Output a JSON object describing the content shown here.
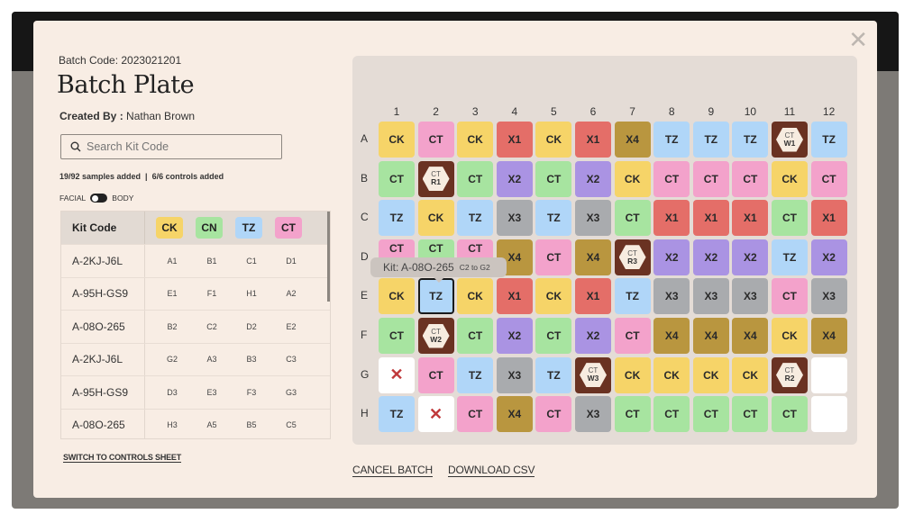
{
  "header": {
    "batch_code": "Batch Code: 2023021201",
    "title": "Batch Plate",
    "created_label": "Created By :",
    "created_value": "Nathan Brown",
    "close_icon": "close-icon"
  },
  "search": {
    "placeholder": "Search Kit Code"
  },
  "counts": "19/92 samples added  |  6/6 controls added",
  "toggle": {
    "left": "FACIAL",
    "right": "BODY",
    "state": "facial"
  },
  "table": {
    "header": "Kit Code",
    "chips": [
      {
        "label": "CK",
        "color": "yellow"
      },
      {
        "label": "CN",
        "color": "green"
      },
      {
        "label": "TZ",
        "color": "blue"
      },
      {
        "label": "CT",
        "color": "pink"
      }
    ],
    "rows": [
      {
        "kit": "A-2KJ-J6L",
        "wells": [
          "A1",
          "B1",
          "C1",
          "D1"
        ]
      },
      {
        "kit": "A-95H-GS9",
        "wells": [
          "E1",
          "F1",
          "H1",
          "A2"
        ]
      },
      {
        "kit": "A-08O-265",
        "wells": [
          "B2",
          "C2",
          "D2",
          "E2"
        ]
      },
      {
        "kit": "A-2KJ-J6L",
        "wells": [
          "G2",
          "A3",
          "B3",
          "C3"
        ]
      },
      {
        "kit": "A-95H-GS9",
        "wells": [
          "D3",
          "E3",
          "F3",
          "G3"
        ]
      },
      {
        "kit": "A-08O-265",
        "wells": [
          "H3",
          "A5",
          "B5",
          "C5"
        ]
      }
    ]
  },
  "links": {
    "switch": "SWITCH TO CONTROLS SHEET",
    "cancel": "CANCEL BATCH",
    "download": "DOWNLOAD CSV"
  },
  "colors": {
    "yellow": "#f6d468",
    "pink": "#f3a2cb",
    "green": "#a7e4a0",
    "blue": "#b0d6f8",
    "x1": "#e46e68",
    "x2": "#aa93e3",
    "x3": "#a9abae",
    "x4": "#b9963f",
    "ctrl": "#6a3222",
    "empty": "#ffffff"
  },
  "plate": {
    "columns": [
      "1",
      "2",
      "3",
      "4",
      "5",
      "6",
      "7",
      "8",
      "9",
      "10",
      "11",
      "12"
    ],
    "rows": [
      "A",
      "B",
      "C",
      "D",
      "E",
      "F",
      "G",
      "H"
    ],
    "tooltip": {
      "kit": "Kit: A-08O-265",
      "range": "C2 to G2",
      "row": 4,
      "col": 1
    },
    "selected": {
      "row": 4,
      "col": 1
    },
    "cells": [
      [
        [
          "CK",
          "yellow"
        ],
        [
          "CT",
          "pink"
        ],
        [
          "CK",
          "yellow"
        ],
        [
          "X1",
          "x1"
        ],
        [
          "CK",
          "yellow"
        ],
        [
          "X1",
          "x1"
        ],
        [
          "X4",
          "x4"
        ],
        [
          "TZ",
          "blue"
        ],
        [
          "TZ",
          "blue"
        ],
        [
          "TZ",
          "blue"
        ],
        [
          "CT W1",
          "ctrl"
        ],
        [
          "TZ",
          "blue"
        ]
      ],
      [
        [
          "CT",
          "green"
        ],
        [
          "CT R1",
          "ctrl"
        ],
        [
          "CT",
          "green"
        ],
        [
          "X2",
          "x2"
        ],
        [
          "CT",
          "green"
        ],
        [
          "X2",
          "x2"
        ],
        [
          "CK",
          "yellow"
        ],
        [
          "CT",
          "pink"
        ],
        [
          "CT",
          "pink"
        ],
        [
          "CT",
          "pink"
        ],
        [
          "CK",
          "yellow"
        ],
        [
          "CT",
          "pink"
        ]
      ],
      [
        [
          "TZ",
          "blue"
        ],
        [
          "CK",
          "yellow"
        ],
        [
          "TZ",
          "blue"
        ],
        [
          "X3",
          "x3"
        ],
        [
          "TZ",
          "blue"
        ],
        [
          "X3",
          "x3"
        ],
        [
          "CT",
          "green"
        ],
        [
          "X1",
          "x1"
        ],
        [
          "X1",
          "x1"
        ],
        [
          "X1",
          "x1"
        ],
        [
          "CT",
          "green"
        ],
        [
          "X1",
          "x1"
        ]
      ],
      [
        [
          "CT",
          "pink"
        ],
        [
          "CT",
          "green"
        ],
        [
          "CT",
          "pink"
        ],
        [
          "X4",
          "x4"
        ],
        [
          "CT",
          "pink"
        ],
        [
          "X4",
          "x4"
        ],
        [
          "CT R3",
          "ctrl"
        ],
        [
          "X2",
          "x2"
        ],
        [
          "X2",
          "x2"
        ],
        [
          "X2",
          "x2"
        ],
        [
          "TZ",
          "blue"
        ],
        [
          "X2",
          "x2"
        ]
      ],
      [
        [
          "CK",
          "yellow"
        ],
        [
          "TZ",
          "blue"
        ],
        [
          "CK",
          "yellow"
        ],
        [
          "X1",
          "x1"
        ],
        [
          "CK",
          "yellow"
        ],
        [
          "X1",
          "x1"
        ],
        [
          "TZ",
          "blue"
        ],
        [
          "X3",
          "x3"
        ],
        [
          "X3",
          "x3"
        ],
        [
          "X3",
          "x3"
        ],
        [
          "CT",
          "pink"
        ],
        [
          "X3",
          "x3"
        ]
      ],
      [
        [
          "CT",
          "green"
        ],
        [
          "CT W2",
          "ctrl"
        ],
        [
          "CT",
          "green"
        ],
        [
          "X2",
          "x2"
        ],
        [
          "CT",
          "green"
        ],
        [
          "X2",
          "x2"
        ],
        [
          "CT",
          "pink"
        ],
        [
          "X4",
          "x4"
        ],
        [
          "X4",
          "x4"
        ],
        [
          "X4",
          "x4"
        ],
        [
          "CK",
          "yellow"
        ],
        [
          "X4",
          "x4"
        ]
      ],
      [
        [
          "X",
          "empty"
        ],
        [
          "CT",
          "pink"
        ],
        [
          "TZ",
          "blue"
        ],
        [
          "X3",
          "x3"
        ],
        [
          "TZ",
          "blue"
        ],
        [
          "CT W3",
          "ctrl"
        ],
        [
          "CK",
          "yellow"
        ],
        [
          "CK",
          "yellow"
        ],
        [
          "CK",
          "yellow"
        ],
        [
          "CK",
          "yellow"
        ],
        [
          "CT R2",
          "ctrl"
        ],
        [
          "",
          "empty"
        ]
      ],
      [
        [
          "TZ",
          "blue"
        ],
        [
          "X",
          "empty"
        ],
        [
          "CT",
          "pink"
        ],
        [
          "X4",
          "x4"
        ],
        [
          "CT",
          "pink"
        ],
        [
          "X3",
          "x3"
        ],
        [
          "CT",
          "green"
        ],
        [
          "CT",
          "green"
        ],
        [
          "CT",
          "green"
        ],
        [
          "CT",
          "green"
        ],
        [
          "CT",
          "green"
        ],
        [
          "",
          "empty"
        ]
      ]
    ]
  }
}
